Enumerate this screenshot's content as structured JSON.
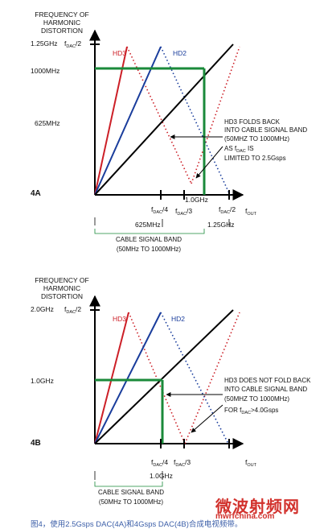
{
  "caption": "图4，使用2.5Gsps DAC(4A)和4Gsps DAC(4B)合成电视频带。",
  "watermark": {
    "cn": "微波射频网",
    "url": "mwrfchina.com"
  },
  "colors": {
    "hd3": "#cc1f27",
    "hd2": "#1a3d9c",
    "fundamental": "#000000",
    "band": "#1a8a3a"
  },
  "panels": [
    {
      "id": "4A",
      "label": "4A",
      "y_title": [
        "FREQUENCY OF",
        "HARMONIC",
        "DISTORTION"
      ],
      "y_top": {
        "freq": "1.25GHz",
        "sym_main": "f",
        "sym_sub": "DAC",
        "sym_tail": "/2"
      },
      "y_ticks": [
        "1000MHz",
        "625MHz"
      ],
      "hd3_label": "HD3",
      "hd2_label": "HD2",
      "x_ticks": [
        {
          "sym_main": "f",
          "sym_sub": "DAC",
          "sym_tail": "/4",
          "value": "625MHz"
        },
        {
          "sym_main": "f",
          "sym_sub": "DAC",
          "sym_tail": "/3",
          "value": ""
        },
        {
          "sym_main": "f",
          "sym_sub": "DAC",
          "sym_tail": "/2",
          "value": "1.25GHz"
        }
      ],
      "fold_point_label": "1.0GHz",
      "x_axis_label": {
        "main": "f",
        "sub": "OUT"
      },
      "annotation": [
        "HD3 FOLDS BACK",
        "INTO CABLE SIGNAL BAND",
        "(50MHZ TO 1000MHz)",
        "AS f|DAC| IS",
        "LIMITED TO 2.5Gsps"
      ],
      "band_label": [
        "CABLE SIGNAL BAND",
        "(50MHz TO 1000MHz)"
      ],
      "sample_rate": "2.5Gsps"
    },
    {
      "id": "4B",
      "label": "4B",
      "y_title": [
        "FREQUENCY OF",
        "HARMONIC",
        "DISTORTION"
      ],
      "y_top": {
        "freq": "2.0GHz",
        "sym_main": "f",
        "sym_sub": "DAC",
        "sym_tail": "/2"
      },
      "y_ticks": [
        "1.0GHz"
      ],
      "hd3_label": "HD3",
      "hd2_label": "HD2",
      "x_ticks": [
        {
          "sym_main": "f",
          "sym_sub": "DAC",
          "sym_tail": "/4",
          "value": "1.0GHz"
        },
        {
          "sym_main": "f",
          "sym_sub": "DAC",
          "sym_tail": "/3",
          "value": ""
        }
      ],
      "x_axis_label": {
        "main": "f",
        "sub": "OUT"
      },
      "annotation": [
        "HD3 DOES NOT FOLD BACK",
        "INTO CABLE SIGNAL BAND",
        "(50MHZ TO 1000MHz)",
        "FOR f|DAC|>4.0Gsps"
      ],
      "band_label": [
        "CABLE SIGNAL BAND",
        "(50MHz TO 1000MHz)"
      ],
      "sample_rate": "4.0Gsps"
    }
  ]
}
